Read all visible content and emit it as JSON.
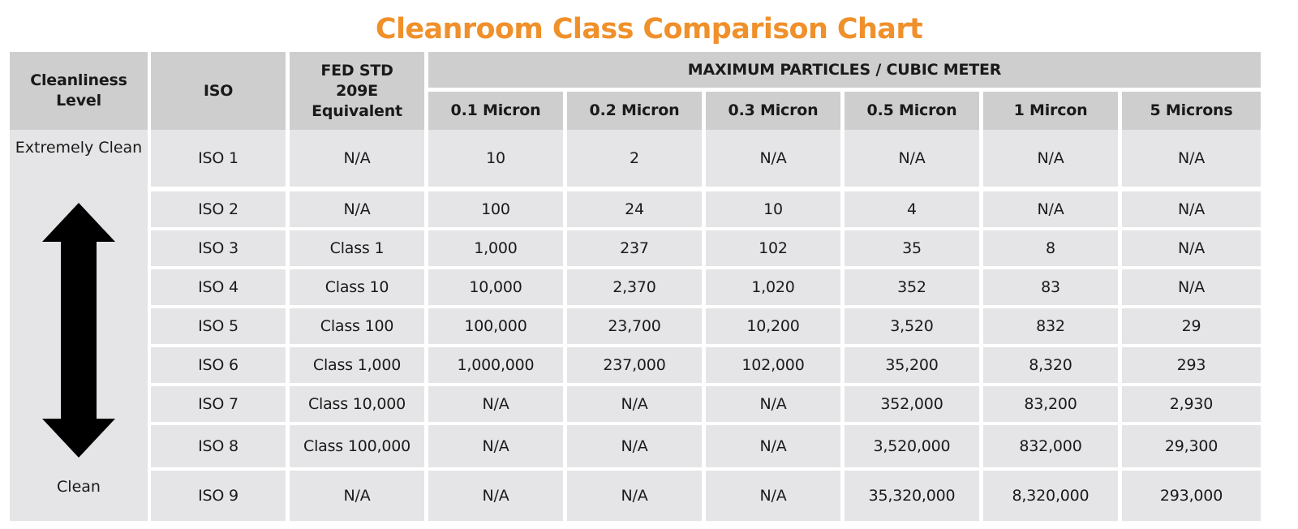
{
  "title": "Cleanroom Class Comparison Chart",
  "colors": {
    "title": "#f0902a",
    "header_bg": "#cececf",
    "cell_bg": "#e5e5e7",
    "arrow": "#000000"
  },
  "headers": {
    "cleanliness_level": "Cleanliness Level",
    "iso": "ISO",
    "fed_std": "FED STD 209E Equivalent",
    "max_particles": "MAXIMUM PARTICLES / CUBIC METER",
    "sizes": [
      "0.1 Micron",
      "0.2 Micron",
      "0.3 Micron",
      "0.5 Micron",
      "1 Mircon",
      "5 Microns"
    ]
  },
  "level_labels": {
    "top": "Extremely Clean",
    "bottom": "Clean",
    "arrow_icon": "double-arrow-vertical-icon"
  },
  "rows": [
    {
      "iso": "ISO 1",
      "fed": "N/A",
      "values": [
        "10",
        "2",
        "N/A",
        "N/A",
        "N/A",
        "N/A"
      ]
    },
    {
      "iso": "ISO 2",
      "fed": "N/A",
      "values": [
        "100",
        "24",
        "10",
        "4",
        "N/A",
        "N/A"
      ]
    },
    {
      "iso": "ISO 3",
      "fed": "Class 1",
      "values": [
        "1,000",
        "237",
        "102",
        "35",
        "8",
        "N/A"
      ]
    },
    {
      "iso": "ISO 4",
      "fed": "Class 10",
      "values": [
        "10,000",
        "2,370",
        "1,020",
        "352",
        "83",
        "N/A"
      ]
    },
    {
      "iso": "ISO 5",
      "fed": "Class 100",
      "values": [
        "100,000",
        "23,700",
        "10,200",
        "3,520",
        "832",
        "29"
      ]
    },
    {
      "iso": "ISO 6",
      "fed": "Class 1,000",
      "values": [
        "1,000,000",
        "237,000",
        "102,000",
        "35,200",
        "8,320",
        "293"
      ]
    },
    {
      "iso": "ISO 7",
      "fed": "Class 10,000",
      "values": [
        "N/A",
        "N/A",
        "N/A",
        "352,000",
        "83,200",
        "2,930"
      ]
    },
    {
      "iso": "ISO 8",
      "fed": "Class 100,000",
      "values": [
        "N/A",
        "N/A",
        "N/A",
        "3,520,000",
        "832,000",
        "29,300"
      ]
    },
    {
      "iso": "ISO 9",
      "fed": "N/A",
      "values": [
        "N/A",
        "N/A",
        "N/A",
        "35,320,000",
        "8,320,000",
        "293,000"
      ]
    }
  ]
}
